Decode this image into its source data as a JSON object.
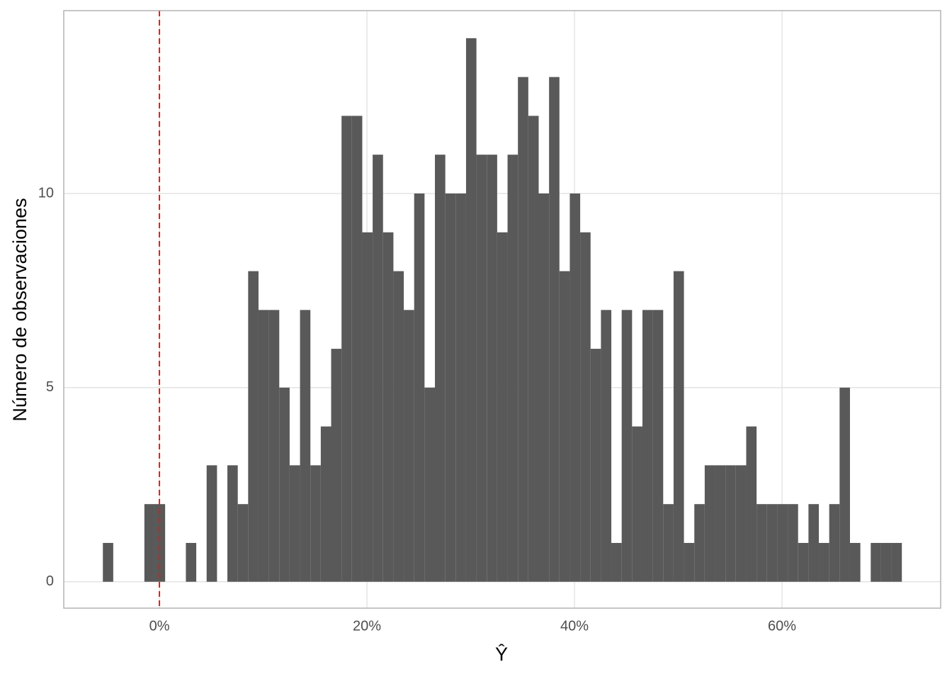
{
  "chart_data": {
    "type": "histogram",
    "x_label": "Ŷ",
    "y_label": "Número de observaciones",
    "bins": [
      -5.45,
      -4.45,
      -3.45,
      -2.45,
      -1.45,
      -0.45,
      0.55,
      1.55,
      2.55,
      3.55,
      4.55,
      5.55,
      6.55,
      7.55,
      8.55,
      9.55,
      10.55,
      11.55,
      12.55,
      13.55,
      14.55,
      15.55,
      16.55,
      17.55,
      18.55,
      19.55,
      20.55,
      21.55,
      22.55,
      23.55,
      24.55,
      25.55,
      26.55,
      27.55,
      28.55,
      29.55,
      30.55,
      31.55,
      32.55,
      33.55,
      34.55,
      35.55,
      36.55,
      37.55,
      38.55,
      39.55,
      40.55,
      41.55,
      42.55,
      43.55,
      44.55,
      45.55,
      46.55,
      47.55,
      48.55,
      49.55,
      50.55,
      51.55,
      52.55,
      53.55,
      54.55,
      55.55,
      56.55,
      57.55,
      58.55,
      59.55,
      60.55,
      61.55,
      62.55,
      63.55,
      64.55,
      65.55,
      66.55,
      67.55,
      68.55,
      69.55,
      70.55,
      71.55
    ],
    "values": [
      1,
      0,
      0,
      0,
      2,
      2,
      0,
      0,
      1,
      0,
      3,
      0,
      3,
      2,
      8,
      7,
      7,
      5,
      3,
      7,
      3,
      4,
      6,
      12,
      12,
      9,
      11,
      9,
      8,
      7,
      10,
      5,
      11,
      10,
      10,
      14,
      11,
      11,
      9,
      11,
      13,
      12,
      10,
      13,
      8,
      10,
      9,
      6,
      7,
      1,
      7,
      4,
      7,
      7,
      2,
      8,
      1,
      2,
      3,
      3,
      3,
      3,
      4,
      2,
      2,
      2,
      2,
      1,
      2,
      1,
      2,
      5,
      1,
      0,
      1,
      1,
      1
    ],
    "color": "#595959",
    "vline": {
      "x": 0,
      "color": "#e41a1c"
    },
    "xlim": [
      -9.22,
      75.29
    ],
    "ylim": [
      -0.68,
      14.71
    ],
    "xticks": [
      {
        "value": 0,
        "label": "0%"
      },
      {
        "value": 20,
        "label": "20%"
      },
      {
        "value": 40,
        "label": "40%"
      },
      {
        "value": 60,
        "label": "60%"
      }
    ],
    "yticks": [
      0,
      5,
      10
    ],
    "grid": true
  }
}
